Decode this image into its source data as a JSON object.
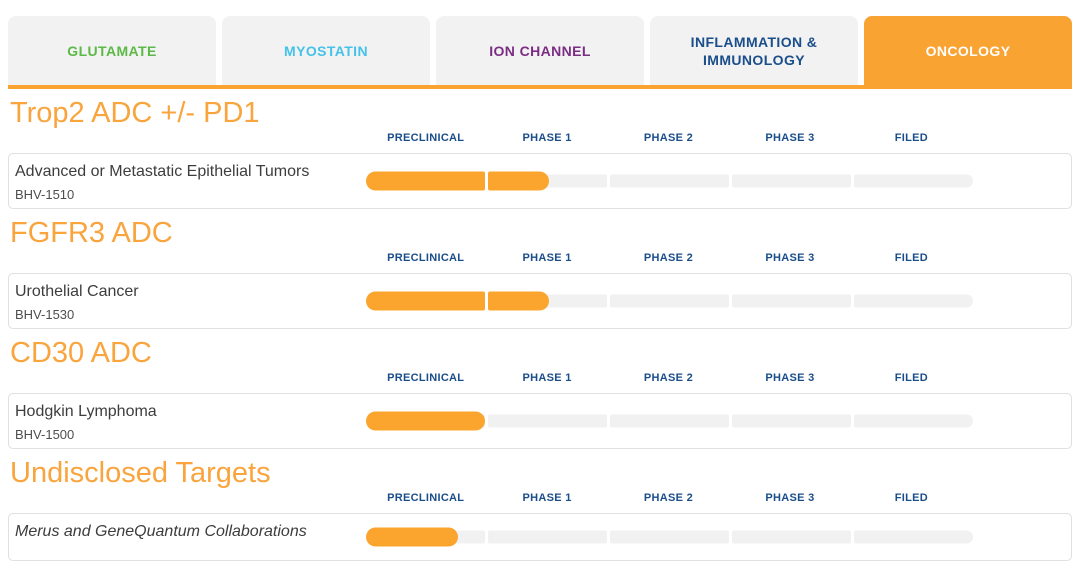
{
  "tabs": [
    {
      "label": "GLUTAMATE",
      "color": "#5CB947",
      "active": false
    },
    {
      "label": "MYOSTATIN",
      "color": "#45C2E9",
      "active": false
    },
    {
      "label": "ION CHANNEL",
      "color": "#7B2D84",
      "active": false
    },
    {
      "label": "INFLAMMATION & IMMUNOLOGY",
      "color": "#1A4E8A",
      "active": false
    },
    {
      "label": "ONCOLOGY",
      "color": "#FFFFFF",
      "active": true
    }
  ],
  "phases": [
    "PRECLINICAL",
    "PHASE 1",
    "PHASE 2",
    "PHASE 3",
    "FILED"
  ],
  "colors": {
    "accent_orange": "#F9A332",
    "bar_fill_orange": "#FBA42E",
    "section_title_orange": "#F9A43D",
    "phase_label_blue": "#1A4E8A",
    "track_gray": "#F1F1F1",
    "inactive_tab_gray": "#F2F2F2"
  },
  "sections": [
    {
      "title": "Trop2 ADC +/- PD1",
      "programs": [
        {
          "name": "Advanced or Metastatic Epithelial Tumors",
          "code": "BHV-1510",
          "stage": "Phase 1",
          "fills": [
            100,
            51,
            0,
            0,
            0
          ]
        }
      ]
    },
    {
      "title": "FGFR3 ADC",
      "programs": [
        {
          "name": "Urothelial Cancer",
          "code": "BHV-1530",
          "stage": "Phase 1",
          "fills": [
            100,
            51,
            0,
            0,
            0
          ]
        }
      ]
    },
    {
      "title": "CD30 ADC",
      "programs": [
        {
          "name": "Hodgkin Lymphoma",
          "code": "BHV-1500",
          "stage": "Preclinical",
          "fills": [
            100,
            0,
            0,
            0,
            0
          ]
        }
      ]
    },
    {
      "title": "Undisclosed Targets",
      "programs": [
        {
          "name": "Merus and GeneQuantum Collaborations",
          "code": "",
          "stage": "Preclinical",
          "fills": [
            77,
            0,
            0,
            0,
            0
          ]
        }
      ]
    }
  ]
}
